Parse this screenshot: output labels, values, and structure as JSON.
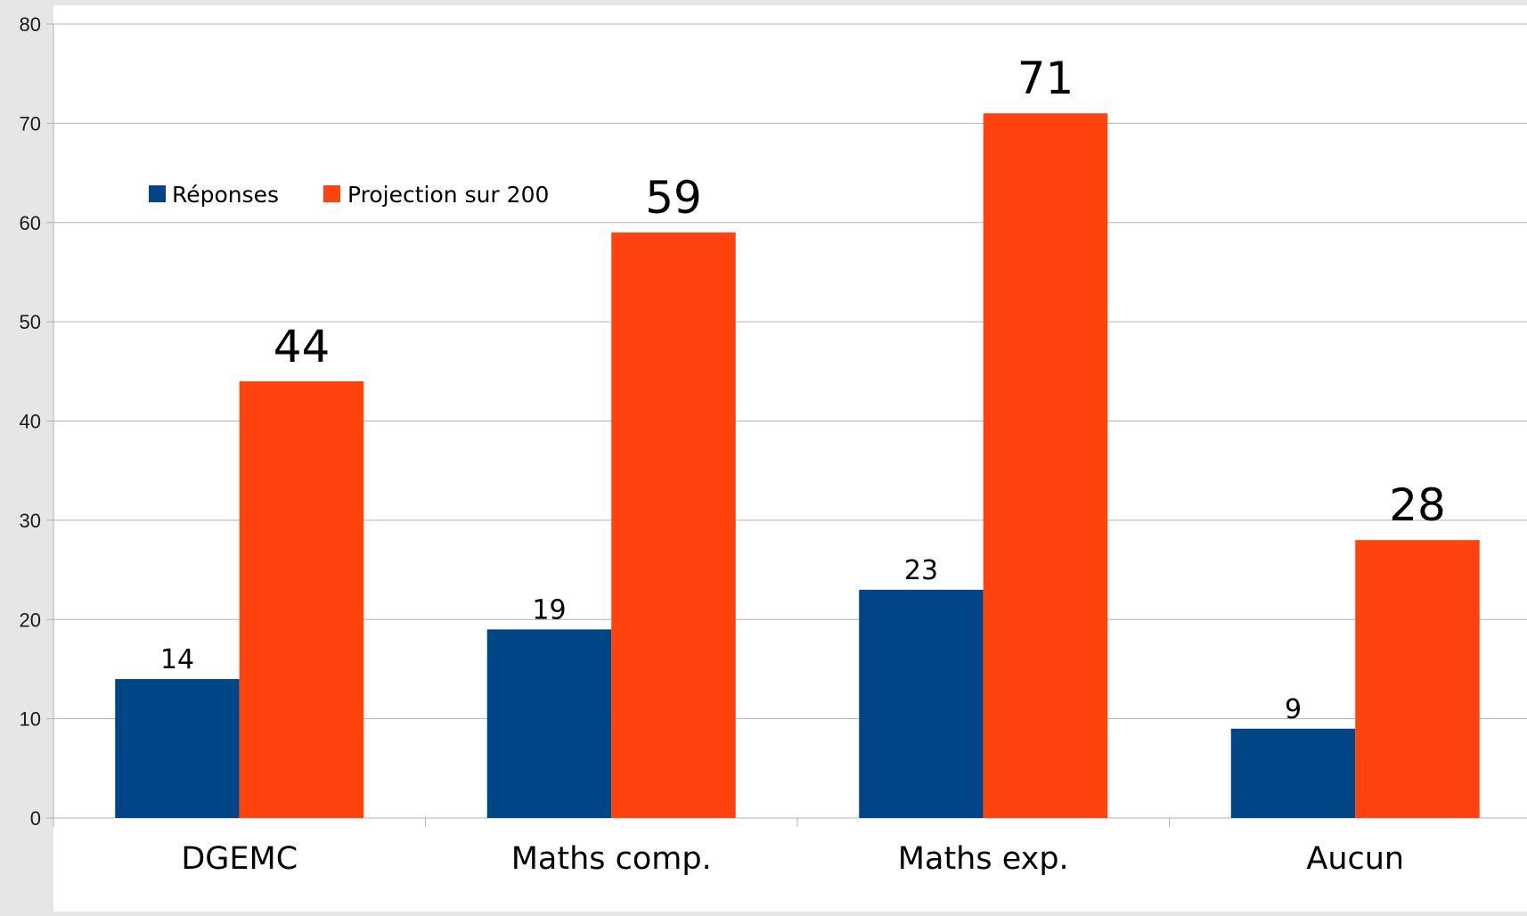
{
  "chart_data": {
    "type": "bar",
    "categories": [
      "DGEMC",
      "Maths comp.",
      "Maths exp.",
      "Aucun"
    ],
    "series": [
      {
        "name": "Réponses",
        "values": [
          14,
          19,
          23,
          9
        ],
        "color": "#004586"
      },
      {
        "name": "Projection sur 200",
        "values": [
          44,
          59,
          71,
          28
        ],
        "color": "#ff420e"
      }
    ],
    "y_ticks": [
      "0",
      "10",
      "20",
      "30",
      "40",
      "50",
      "60",
      "70",
      "80"
    ],
    "ylim": [
      0,
      80
    ],
    "grid": true,
    "legend_position": "top-left"
  }
}
